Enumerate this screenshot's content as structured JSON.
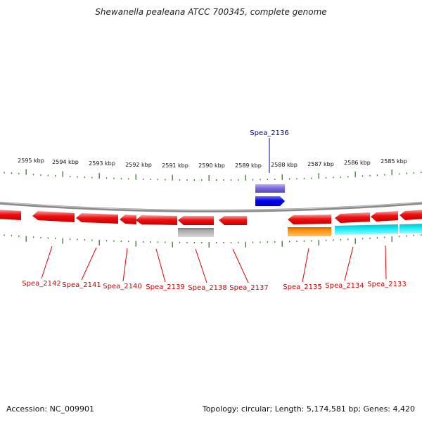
{
  "title": "Shewanella pealeana ATCC 700345, complete genome",
  "footer": {
    "accession": "Accession: NC_009901",
    "summary": "Topology: circular; Length: 5,174,581 bp; Genes: 4,420"
  },
  "colors": {
    "backbone": "#888888",
    "tick": "#2e7d1f",
    "gene_red": "#ee1111",
    "gene_blue": "#0000ee",
    "gene_purple": "#7b68d8",
    "gene_gray": "#a6a6a6",
    "gene_orange": "#ff8c00",
    "gene_cyan": "#00e5ee",
    "label_red": "#cc0000",
    "label_blue": "#000099"
  },
  "ruler": {
    "labels": [
      "2595 kbp",
      "2594 kbp",
      "2593 kbp",
      "2592 kbp",
      "2591 kbp",
      "2590 kbp",
      "2589 kbp",
      "2588 kbp",
      "2587 kbp",
      "2586 kbp",
      "2585 kbp"
    ]
  },
  "genes": [
    {
      "name": "Spea_2142",
      "strand": "-",
      "color": "red"
    },
    {
      "name": "Spea_2141",
      "strand": "-",
      "color": "red"
    },
    {
      "name": "Spea_2140",
      "strand": "-",
      "color": "red"
    },
    {
      "name": "Spea_2139",
      "strand": "-",
      "color": "red"
    },
    {
      "name": "Spea_2138",
      "strand": "-",
      "color": "red"
    },
    {
      "name": "Spea_2137",
      "strand": "-",
      "color": "red"
    },
    {
      "name": "Spea_2136",
      "strand": "+",
      "color": "blue"
    },
    {
      "name": "Spea_2135",
      "strand": "-",
      "color": "red"
    },
    {
      "name": "Spea_2134",
      "strand": "-",
      "color": "red"
    },
    {
      "name": "Spea_2133",
      "strand": "-",
      "color": "red"
    }
  ]
}
